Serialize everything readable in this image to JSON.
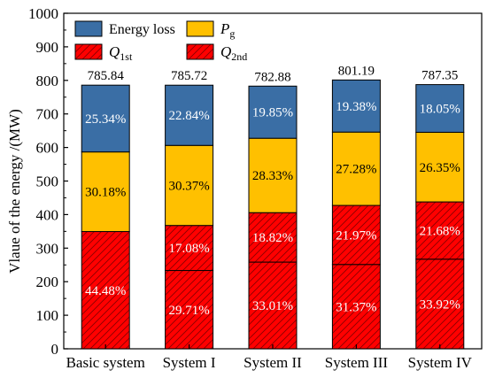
{
  "chart_data": {
    "type": "bar",
    "stacked": true,
    "ylabel": "Vlaue of the energy /(MW)",
    "xlabel": "",
    "ylim": [
      0,
      1000
    ],
    "yticks": [
      0,
      100,
      200,
      300,
      400,
      500,
      600,
      700,
      800,
      900,
      1000
    ],
    "categories": [
      "Basic system",
      "System I",
      "System II",
      "System III",
      "System IV"
    ],
    "totals": [
      785.84,
      785.72,
      782.88,
      801.19,
      787.35
    ],
    "total_labels": [
      "785.84",
      "785.72",
      "782.88",
      "801.19",
      "787.35"
    ],
    "series": [
      {
        "name": "Q2nd",
        "color": "#ff0000",
        "hatch": true,
        "values": [
          349.5,
          233.4,
          258.4,
          251.3,
          267.1
        ],
        "labels": [
          "44.48%",
          "29.71%",
          "33.01%",
          "31.37%",
          "33.92%"
        ]
      },
      {
        "name": "Q1st",
        "color": "#ff0000",
        "hatch": true,
        "values": [
          0,
          134.2,
          147.3,
          176.0,
          170.7
        ],
        "labels": [
          "",
          "17.08%",
          "18.82%",
          "21.97%",
          "21.68%"
        ]
      },
      {
        "name": "Pg",
        "color": "#ffc000",
        "hatch": false,
        "values": [
          237.2,
          238.6,
          221.8,
          218.6,
          207.5
        ],
        "labels": [
          "30.18%",
          "30.37%",
          "28.33%",
          "27.28%",
          "26.35%"
        ]
      },
      {
        "name": "Energy loss",
        "color": "#3a6ea5",
        "hatch": false,
        "values": [
          199.1,
          179.5,
          155.4,
          155.3,
          142.1
        ],
        "labels": [
          "25.34%",
          "22.84%",
          "19.85%",
          "19.38%",
          "18.05%"
        ]
      }
    ],
    "legend": {
      "placement": "top-left",
      "entries": [
        {
          "key": "energy_loss",
          "text": "Energy loss",
          "color": "#3a6ea5",
          "hatch": false
        },
        {
          "key": "pg",
          "symbol": "P",
          "sub": "g",
          "color": "#ffc000",
          "hatch": false
        },
        {
          "key": "q1",
          "symbol": "Q",
          "sub": "1st",
          "color": "#ff0000",
          "hatch": true
        },
        {
          "key": "q2",
          "symbol": "Q",
          "sub": "2nd",
          "color": "#ff0000",
          "hatch": true
        }
      ]
    },
    "grid": false
  }
}
